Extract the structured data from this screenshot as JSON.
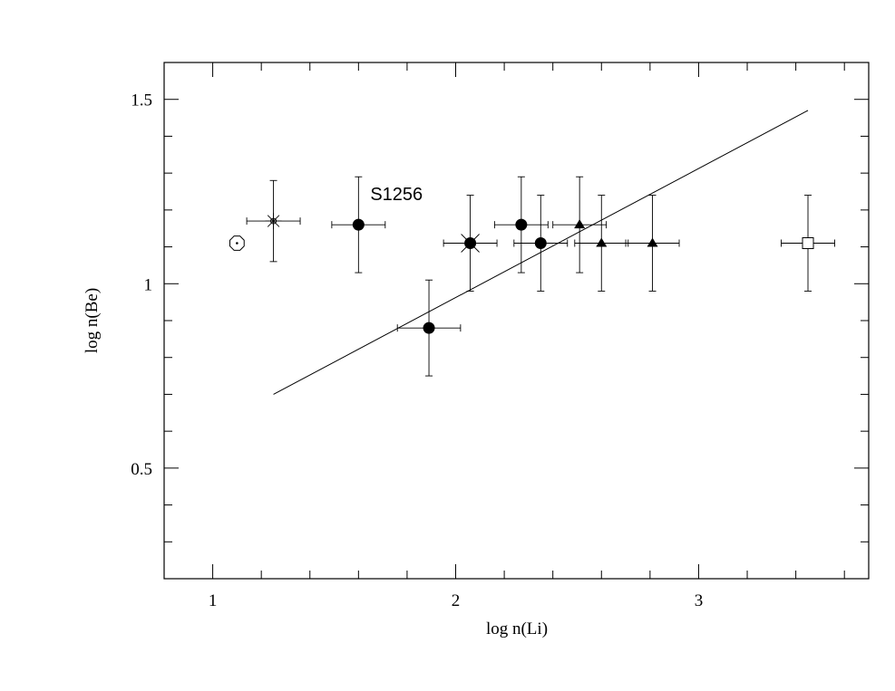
{
  "chart_data": {
    "type": "scatter",
    "title": "",
    "xlabel": "log  n(Li)",
    "ylabel": "log  n(Be)",
    "xlim": [
      0.8,
      3.7
    ],
    "ylim": [
      0.2,
      1.6
    ],
    "x_ticks": [
      {
        "value": 1,
        "label": "1"
      },
      {
        "value": 2,
        "label": "2"
      },
      {
        "value": 3,
        "label": "3"
      }
    ],
    "y_ticks": [
      {
        "value": 0.5,
        "label": "0.5"
      },
      {
        "value": 1,
        "label": "1"
      },
      {
        "value": 1.5,
        "label": "1.5"
      }
    ],
    "x_minor_step": 0.2,
    "y_minor_step": 0.1,
    "fit_line": {
      "x": [
        1.25,
        3.45
      ],
      "y": [
        0.7,
        1.47
      ]
    },
    "points": [
      {
        "marker": "sun",
        "x": 1.1,
        "y": 1.11
      },
      {
        "marker": "asterisk",
        "x": 1.25,
        "y": 1.17,
        "xerr": 0.11,
        "yerr": 0.11
      },
      {
        "marker": "filled-circle",
        "x": 1.6,
        "y": 1.16,
        "xerr": 0.11,
        "yerr": 0.13,
        "label": "S1256"
      },
      {
        "marker": "filled-circle",
        "x": 1.89,
        "y": 0.88,
        "xerr": 0.13,
        "yerr": 0.13
      },
      {
        "marker": "filled-circle-cross",
        "x": 2.06,
        "y": 1.11,
        "xerr": 0.11,
        "yerr": 0.13
      },
      {
        "marker": "filled-circle",
        "x": 2.27,
        "y": 1.16,
        "xerr": 0.11,
        "yerr": 0.13
      },
      {
        "marker": "filled-circle",
        "x": 2.35,
        "y": 1.11,
        "xerr": 0.11,
        "yerr": 0.13
      },
      {
        "marker": "filled-triangle",
        "x": 2.51,
        "y": 1.16,
        "xerr": 0.11,
        "yerr": 0.13
      },
      {
        "marker": "filled-triangle",
        "x": 2.6,
        "y": 1.11,
        "xerr": 0.11,
        "yerr": 0.13
      },
      {
        "marker": "filled-triangle",
        "x": 2.81,
        "y": 1.11,
        "xerr": 0.11,
        "yerr": 0.13
      },
      {
        "marker": "open-square",
        "x": 3.45,
        "y": 1.11,
        "xerr": 0.11,
        "yerr": 0.13
      }
    ],
    "grid": false,
    "legend": "none"
  }
}
